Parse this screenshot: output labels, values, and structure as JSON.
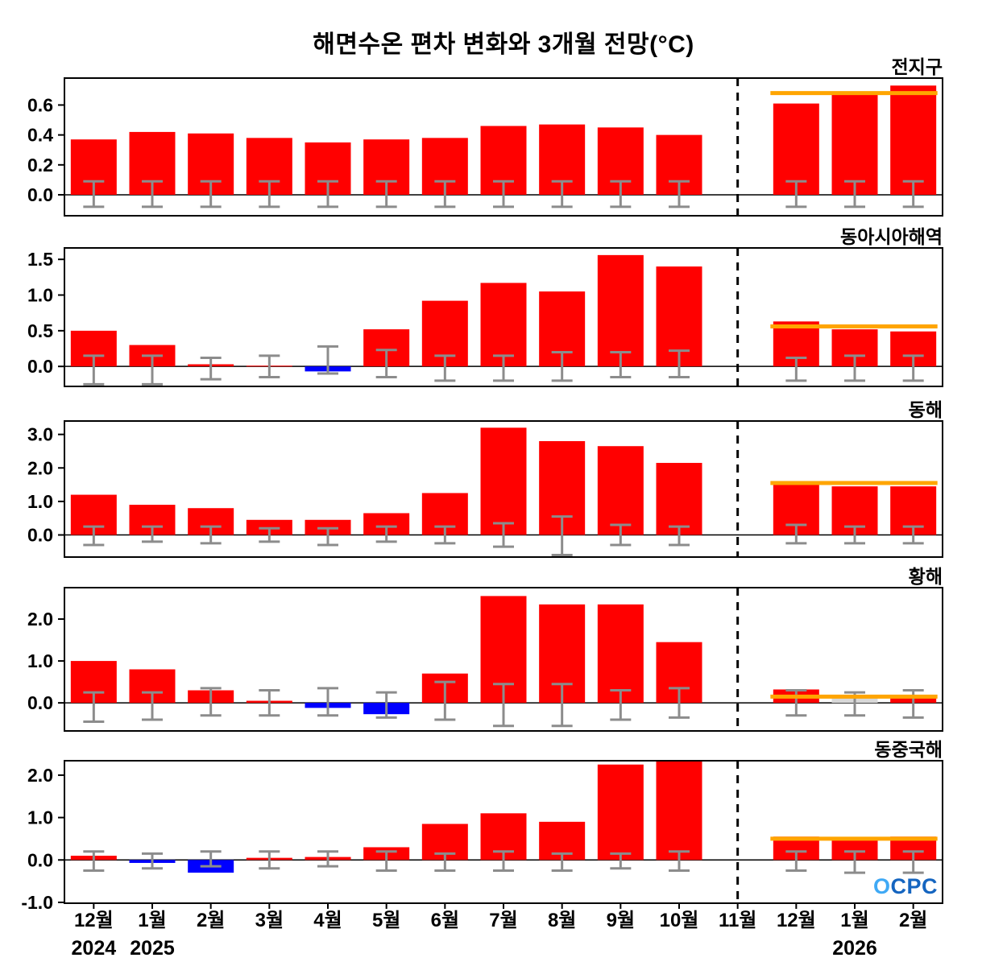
{
  "title": "해면수온 편차 변화와 3개월 전망(°C)",
  "logo": {
    "o": "O",
    "rest": "CPC"
  },
  "x_axis": {
    "months": [
      "12월",
      "1월",
      "2월",
      "3월",
      "4월",
      "5월",
      "6월",
      "7월",
      "8월",
      "9월",
      "10월",
      "11월",
      "12월",
      "1월",
      "2월"
    ],
    "year_labels": [
      {
        "month_index": 0,
        "text": "2024"
      },
      {
        "month_index": 1,
        "text": "2025"
      },
      {
        "month_index": 13,
        "text": "2026"
      }
    ],
    "forecast_divider_after_index": 11
  },
  "colors": {
    "positive_bar": "#ff0000",
    "negative_bar": "#0000ff",
    "forecast_line": "#ffa500",
    "error_bar": "#8c8c8c",
    "special_bar": "#d8d8d8",
    "divider": "#000000",
    "axis": "#000000"
  },
  "chart_data": [
    {
      "type": "bar",
      "region": "전지구",
      "ylim": [
        -0.14,
        0.78
      ],
      "yticks": [
        0.0,
        0.2,
        0.4,
        0.6
      ],
      "values": [
        0.37,
        0.42,
        0.41,
        0.38,
        0.35,
        0.37,
        0.38,
        0.46,
        0.47,
        0.45,
        0.4,
        null,
        0.61,
        0.67,
        0.73
      ],
      "error_bars": [
        [
          -0.08,
          0.09
        ],
        [
          -0.08,
          0.09
        ],
        [
          -0.08,
          0.09
        ],
        [
          -0.08,
          0.09
        ],
        [
          -0.08,
          0.09
        ],
        [
          -0.08,
          0.09
        ],
        [
          -0.08,
          0.09
        ],
        [
          -0.08,
          0.09
        ],
        [
          -0.08,
          0.09
        ],
        [
          -0.08,
          0.09
        ],
        [
          -0.08,
          0.09
        ],
        null,
        [
          -0.08,
          0.09
        ],
        [
          -0.08,
          0.09
        ],
        [
          -0.08,
          0.09
        ]
      ],
      "forecast_line": 0.68,
      "forecast_months": [
        12,
        14
      ]
    },
    {
      "type": "bar",
      "region": "동아시아해역",
      "ylim": [
        -0.28,
        1.66
      ],
      "yticks": [
        0.0,
        0.5,
        1.0,
        1.5
      ],
      "values": [
        0.5,
        0.3,
        0.03,
        0.01,
        -0.07,
        0.52,
        0.92,
        1.17,
        1.05,
        1.56,
        1.4,
        null,
        0.63,
        0.52,
        0.49
      ],
      "error_bars": [
        [
          -0.25,
          0.15
        ],
        [
          -0.25,
          0.15
        ],
        [
          -0.18,
          0.12
        ],
        [
          -0.15,
          0.15
        ],
        [
          -0.1,
          0.28
        ],
        [
          -0.15,
          0.23
        ],
        [
          -0.2,
          0.15
        ],
        [
          -0.2,
          0.15
        ],
        [
          -0.2,
          0.2
        ],
        [
          -0.15,
          0.2
        ],
        [
          -0.15,
          0.22
        ],
        null,
        [
          -0.2,
          0.12
        ],
        [
          -0.2,
          0.15
        ],
        [
          -0.2,
          0.15
        ]
      ],
      "forecast_line": 0.56,
      "forecast_months": [
        12,
        14
      ]
    },
    {
      "type": "bar",
      "region": "동해",
      "ylim": [
        -0.66,
        3.4
      ],
      "yticks": [
        0.0,
        1.0,
        2.0,
        3.0
      ],
      "values": [
        1.2,
        0.9,
        0.8,
        0.45,
        0.45,
        0.65,
        1.25,
        3.2,
        2.8,
        2.65,
        2.15,
        null,
        1.5,
        1.45,
        1.45
      ],
      "error_bars": [
        [
          -0.3,
          0.25
        ],
        [
          -0.2,
          0.25
        ],
        [
          -0.25,
          0.25
        ],
        [
          -0.2,
          0.2
        ],
        [
          -0.3,
          0.2
        ],
        [
          -0.2,
          0.25
        ],
        [
          -0.25,
          0.25
        ],
        [
          -0.35,
          0.35
        ],
        [
          -0.6,
          0.55
        ],
        [
          -0.3,
          0.3
        ],
        [
          -0.3,
          0.25
        ],
        null,
        [
          -0.25,
          0.3
        ],
        [
          -0.25,
          0.25
        ],
        [
          -0.25,
          0.25
        ]
      ],
      "forecast_line": 1.55,
      "forecast_months": [
        12,
        14
      ]
    },
    {
      "type": "bar",
      "region": "황해",
      "ylim": [
        -0.67,
        2.75
      ],
      "yticks": [
        0.0,
        1.0,
        2.0
      ],
      "values": [
        1.0,
        0.8,
        0.3,
        0.05,
        -0.12,
        -0.27,
        0.7,
        2.55,
        2.35,
        2.35,
        1.45,
        null,
        0.32,
        0.18,
        0.12
      ],
      "bar_colors": [
        null,
        null,
        null,
        null,
        null,
        null,
        null,
        null,
        null,
        null,
        null,
        null,
        null,
        "#d8d8d8",
        null
      ],
      "error_bars": [
        [
          -0.45,
          0.25
        ],
        [
          -0.4,
          0.25
        ],
        [
          -0.3,
          0.35
        ],
        [
          -0.3,
          0.3
        ],
        [
          -0.3,
          0.35
        ],
        [
          -0.35,
          0.25
        ],
        [
          -0.4,
          0.5
        ],
        [
          -0.55,
          0.45
        ],
        [
          -0.55,
          0.45
        ],
        [
          -0.4,
          0.3
        ],
        [
          -0.35,
          0.35
        ],
        null,
        [
          -0.3,
          0.3
        ],
        [
          -0.3,
          0.25
        ],
        [
          -0.35,
          0.3
        ]
      ],
      "forecast_line": 0.15,
      "forecast_months": [
        12,
        14
      ]
    },
    {
      "type": "bar",
      "region": "동중국해",
      "ylim": [
        -1.02,
        2.34
      ],
      "yticks": [
        -1.0,
        0.0,
        1.0,
        2.0
      ],
      "values": [
        0.1,
        -0.07,
        -0.3,
        0.05,
        0.07,
        0.3,
        0.85,
        1.1,
        0.9,
        2.25,
        2.6,
        null,
        0.55,
        0.5,
        0.55
      ],
      "error_bars": [
        [
          -0.25,
          0.2
        ],
        [
          -0.2,
          0.15
        ],
        [
          -0.15,
          0.2
        ],
        [
          -0.2,
          0.2
        ],
        [
          -0.15,
          0.2
        ],
        [
          -0.25,
          0.2
        ],
        [
          -0.25,
          0.15
        ],
        [
          -0.25,
          0.2
        ],
        [
          -0.25,
          0.15
        ],
        [
          -0.2,
          0.15
        ],
        [
          -0.25,
          0.2
        ],
        null,
        [
          -0.25,
          0.2
        ],
        [
          -0.3,
          0.2
        ],
        [
          -0.3,
          0.2
        ]
      ],
      "forecast_line": 0.5,
      "forecast_months": [
        12,
        14
      ]
    }
  ]
}
